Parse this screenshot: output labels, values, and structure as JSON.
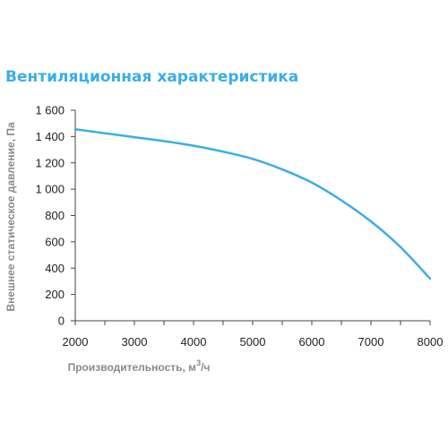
{
  "chart_data": {
    "type": "line",
    "title": "Вентиляционная характеристика",
    "xlabel": "Производительность, м",
    "xlabel_sup": "3",
    "xlabel_tail": "/ч",
    "ylabel": "Внешнее статическое давление, Па",
    "xlim": [
      2000,
      8000
    ],
    "ylim": [
      0,
      1600
    ],
    "xticks": [
      2000,
      3000,
      4000,
      5000,
      6000,
      7000,
      8000
    ],
    "xtick_labels": [
      "2000",
      "3000",
      "4000",
      "5000",
      "6000",
      "7000",
      "8000"
    ],
    "yticks": [
      0,
      200,
      400,
      600,
      800,
      1000,
      1200,
      1400,
      1600
    ],
    "ytick_labels": [
      "0",
      "200",
      "400",
      "600",
      "800",
      "1 000",
      "1 200",
      "1 400",
      "1 600"
    ],
    "grid": false,
    "colors": {
      "line": "#3aaee6",
      "axis": "#444444",
      "title": "#3aaee6",
      "axis_title": "#8a8a8a"
    },
    "series": [
      {
        "x": [
          2000,
          2500,
          3000,
          3500,
          4000,
          4500,
          5000,
          5500,
          6000,
          6500,
          7000,
          7500,
          8000
        ],
        "y": [
          1455,
          1425,
          1395,
          1365,
          1330,
          1285,
          1230,
          1150,
          1050,
          915,
          755,
          560,
          320
        ]
      }
    ]
  }
}
